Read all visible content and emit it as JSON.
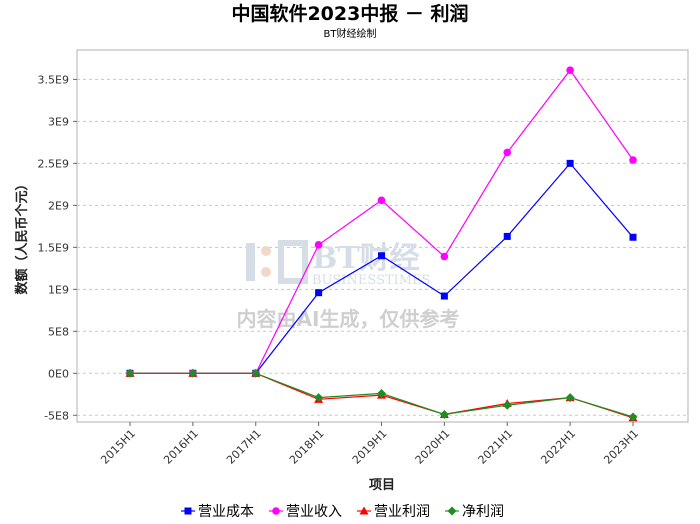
{
  "chart_data": {
    "type": "line",
    "title": "中国软件2023中报 － 利润",
    "subtitle": "BT财经绘制",
    "xlabel": "项目",
    "ylabel": "数额（人民币个元）",
    "categories": [
      "2015H1",
      "2016H1",
      "2017H1",
      "2018H1",
      "2019H1",
      "2020H1",
      "2021H1",
      "2022H1",
      "2023H1"
    ],
    "ylim": [
      -580000000.0,
      3850000000.0
    ],
    "yticks": [
      -500000000.0,
      0,
      500000000.0,
      1000000000.0,
      1500000000.0,
      2000000000.0,
      2500000000.0,
      3000000000.0,
      3500000000.0
    ],
    "ytick_labels": [
      "-5E8",
      "0E0",
      "5E8",
      "1E9",
      "1.5E9",
      "2E9",
      "2.5E9",
      "3E9",
      "3.5E9"
    ],
    "grid": true,
    "legend_position": "bottom",
    "series": [
      {
        "name": "营业成本",
        "color": "#0000ff",
        "marker": "square",
        "values": [
          0,
          0,
          0,
          960000000.0,
          1400000000.0,
          920000000.0,
          1630000000.0,
          2500000000.0,
          1620000000.0
        ]
      },
      {
        "name": "营业收入",
        "color": "#ff00ff",
        "marker": "circle",
        "values": [
          0,
          0,
          0,
          1530000000.0,
          2060000000.0,
          1390000000.0,
          2630000000.0,
          3610000000.0,
          2540000000.0
        ]
      },
      {
        "name": "营业利润",
        "color": "#ff0000",
        "marker": "triangle",
        "values": [
          0,
          0,
          0,
          -310000000.0,
          -260000000.0,
          -490000000.0,
          -360000000.0,
          -290000000.0,
          -530000000.0
        ]
      },
      {
        "name": "净利润",
        "color": "#228b22",
        "marker": "diamond",
        "values": [
          0,
          0,
          0,
          -290000000.0,
          -240000000.0,
          -490000000.0,
          -380000000.0,
          -290000000.0,
          -520000000.0
        ]
      }
    ]
  },
  "watermark": {
    "logo_text": "BT财经",
    "logo_sub": "BUSINESSTIMES",
    "notice": "内容由AI生成，仅供参考"
  }
}
